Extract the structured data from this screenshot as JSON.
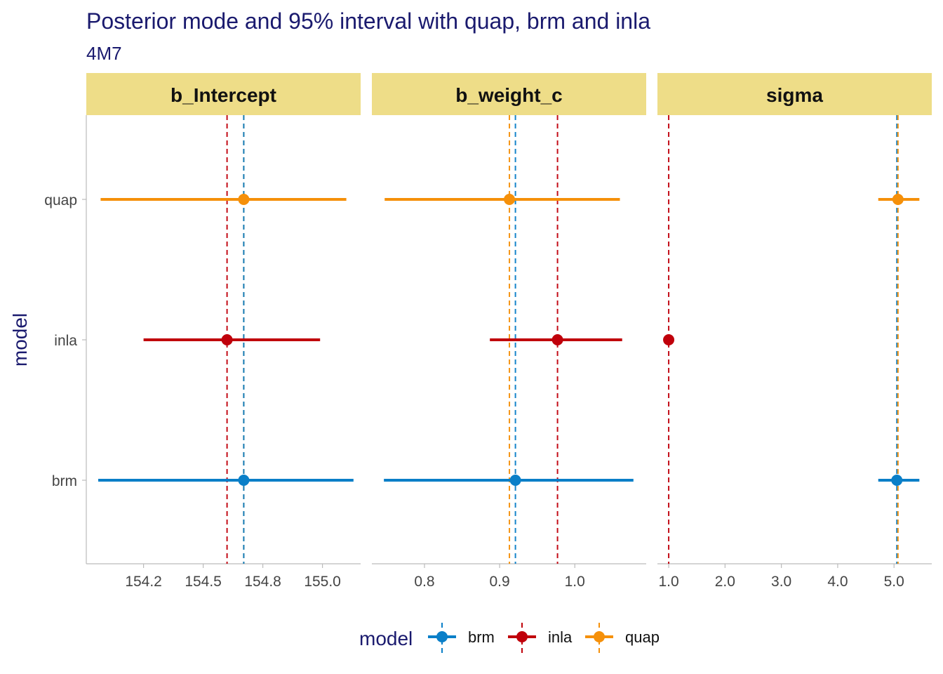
{
  "colors": {
    "title": "#1a1a6e",
    "strip_bg": "#eedd88",
    "tick_text": "#444444",
    "axis_line": "#bbbbbb",
    "brm": "#0a7fc8",
    "inla": "#c0000b",
    "quap": "#f5900a"
  },
  "chart_data": {
    "type": "pointrange",
    "title": "Posterior mode and 95% interval with quap, brm and inla",
    "subtitle": "4M7",
    "ylabel": "model",
    "models": [
      "quap",
      "inla",
      "brm"
    ],
    "legend": {
      "title": "model",
      "placement": "bottom",
      "entries": [
        "brm",
        "inla",
        "quap"
      ]
    },
    "panels": [
      {
        "name": "b_Intercept",
        "xlim": [
          154.01,
          155.16
        ],
        "ticks": [
          154.25,
          154.5,
          154.75,
          155.0
        ],
        "tick_labels": [
          "154.2",
          "154.5",
          "154.8",
          "155.0"
        ],
        "points": [
          {
            "model": "quap",
            "mode": 154.67,
            "low": 154.07,
            "high": 155.1
          },
          {
            "model": "inla",
            "mode": 154.6,
            "low": 154.25,
            "high": 154.99
          },
          {
            "model": "brm",
            "mode": 154.67,
            "low": 154.06,
            "high": 155.13
          }
        ],
        "vlines": [
          {
            "model": "inla",
            "x": 154.6
          },
          {
            "model": "quap",
            "x": 154.67
          },
          {
            "model": "brm",
            "x": 154.67
          }
        ]
      },
      {
        "name": "b_weight_c",
        "xlim": [
          0.73,
          1.095
        ],
        "ticks": [
          0.8,
          0.9,
          1.0
        ],
        "tick_labels": [
          "0.8",
          "0.9",
          "1.0"
        ],
        "points": [
          {
            "model": "quap",
            "mode": 0.913,
            "low": 0.747,
            "high": 1.06
          },
          {
            "model": "inla",
            "mode": 0.977,
            "low": 0.887,
            "high": 1.063
          },
          {
            "model": "brm",
            "mode": 0.921,
            "low": 0.746,
            "high": 1.078
          }
        ],
        "vlines": [
          {
            "model": "quap",
            "x": 0.913
          },
          {
            "model": "brm",
            "x": 0.921
          },
          {
            "model": "inla",
            "x": 0.977
          }
        ]
      },
      {
        "name": "sigma",
        "xlim": [
          0.8,
          5.67
        ],
        "ticks": [
          1.0,
          2.0,
          3.0,
          4.0,
          5.0
        ],
        "tick_labels": [
          "1.0",
          "2.0",
          "3.0",
          "4.0",
          "5.0"
        ],
        "points": [
          {
            "model": "quap",
            "mode": 5.07,
            "low": 4.72,
            "high": 5.45
          },
          {
            "model": "inla",
            "mode": 1.0,
            "low": 1.0,
            "high": 1.0
          },
          {
            "model": "brm",
            "mode": 5.05,
            "low": 4.72,
            "high": 5.45
          }
        ],
        "vlines": [
          {
            "model": "inla",
            "x": 1.0
          },
          {
            "model": "brm",
            "x": 5.05
          },
          {
            "model": "quap",
            "x": 5.07
          }
        ]
      }
    ]
  }
}
